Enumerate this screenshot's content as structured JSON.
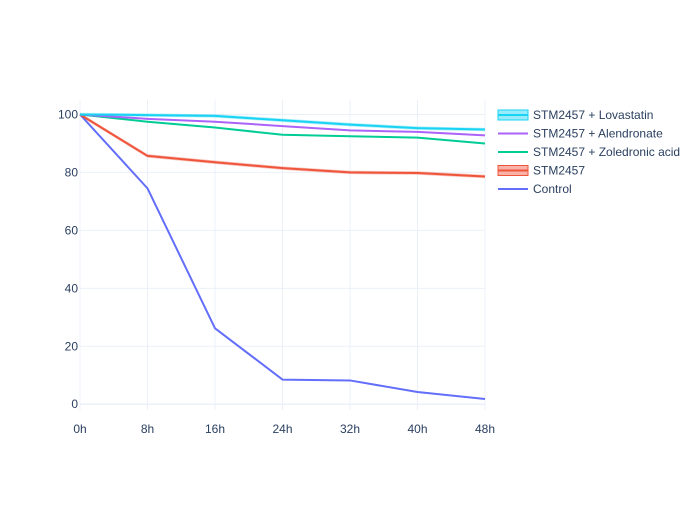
{
  "chart_data": {
    "type": "line",
    "title": "",
    "xlabel": "",
    "ylabel": "",
    "x": [
      "0h",
      "8h",
      "16h",
      "24h",
      "32h",
      "40h",
      "48h"
    ],
    "x_values": [
      0,
      8,
      16,
      24,
      32,
      40,
      48
    ],
    "xlim": [
      0,
      48
    ],
    "ylim": [
      -2,
      105
    ],
    "yticks": [
      0,
      20,
      40,
      60,
      80,
      100
    ],
    "ytick_labels": [
      "0",
      "20",
      "40",
      "60",
      "80",
      "100"
    ],
    "grid": true,
    "legend_position": "right",
    "series": [
      {
        "name": "STM2457 + Lovastatin",
        "color": "#19d3f3",
        "band": true,
        "values": [
          100,
          99.8,
          99.5,
          98,
          96.5,
          95.3,
          94.8
        ],
        "lower": [
          99.4,
          99.2,
          98.9,
          97.4,
          95.9,
          94.7,
          94.2
        ],
        "upper": [
          100.6,
          100.4,
          100.1,
          98.6,
          97.1,
          95.9,
          95.4
        ]
      },
      {
        "name": "STM2457 + Alendronate",
        "color": "#ab63fa",
        "band": false,
        "values": [
          100,
          98.5,
          97.5,
          96,
          94.5,
          94,
          92.8
        ]
      },
      {
        "name": "STM2457 + Zoledronic acid",
        "color": "#00cc96",
        "band": false,
        "values": [
          100,
          97.5,
          95.5,
          93,
          92.5,
          92,
          90
        ]
      },
      {
        "name": "STM2457",
        "color": "#ef553b",
        "band": true,
        "values": [
          100,
          85.7,
          83.5,
          81.5,
          80,
          79.8,
          78.6
        ],
        "lower": [
          99.4,
          85.1,
          82.9,
          80.9,
          79.4,
          79.2,
          78.0
        ],
        "upper": [
          100.6,
          86.3,
          84.1,
          82.1,
          80.6,
          80.4,
          79.2
        ]
      },
      {
        "name": "Control",
        "color": "#636efa",
        "band": false,
        "values": [
          100,
          74.5,
          26.2,
          8.5,
          8.2,
          4.2,
          1.8
        ]
      }
    ]
  }
}
